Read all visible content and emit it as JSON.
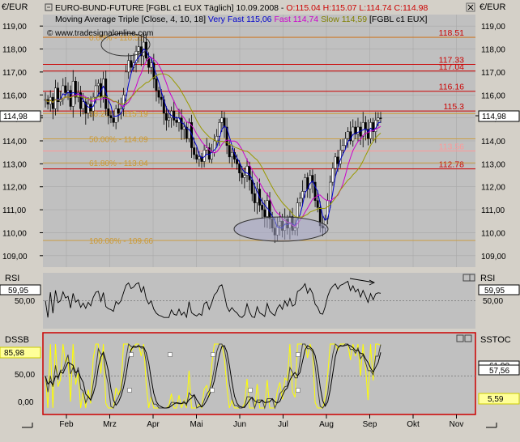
{
  "header": {
    "left_axis_unit": "€/EUR",
    "right_axis_unit": "€/EUR",
    "line1_prefix": "EURO-BUND-FUTURE [FGBL c1 EUX  Täglich] 10.09.2008 - ",
    "line1_ohlc": "O:115.04 H:115.07 L:114.74 C:114.98",
    "line2_prefix": "Moving Average Triple [Close, 4, 10, 18] ",
    "ma_very_fast": "Very Fast 115,06",
    "ma_fast": "Fast 114,74",
    "ma_slow": "Slow 114,59",
    "line2_suffix": " [FGBL c1 EUX]",
    "copyright": "© www.tradesignalonline.com",
    "current_price": "114,98"
  },
  "panels": {
    "rsi": {
      "label": "RSI",
      "value": "59,95",
      "axis_left": "50,00",
      "axis_right": "50,00",
      "axis_left_value": "59,95"
    },
    "dssb": {
      "label": "DSSB",
      "right_label": "SSTOC",
      "value_left": "85,98",
      "value_right_1": "61,90",
      "value_right_2": "57,56",
      "value_right_3": "5,59"
    }
  },
  "colors": {
    "background": "#c0c0c0",
    "grid": "#a8a8a8",
    "fib_line": "#cc9933",
    "red_line": "#cc0000",
    "ma_very_fast": "#0000cc",
    "ma_fast": "#cc00cc",
    "ma_slow": "#999900",
    "yellow": "#ffff00"
  },
  "chart_data": [
    {
      "type": "candlestick",
      "title": "EURO-BUND-FUTURE [FGBL c1 EUX  Täglich]",
      "ylim": [
        108.5,
        119.5
      ],
      "yticks": [
        "119,00",
        "118,00",
        "117,00",
        "116,00",
        "115,00",
        "114,00",
        "113,00",
        "112,00",
        "111,00",
        "110,00",
        "109,00"
      ],
      "ytick_values": [
        119,
        118,
        117,
        116,
        115,
        114,
        113,
        112,
        111,
        110,
        109
      ],
      "xticks": [
        "Feb",
        "Mrz",
        "Apr",
        "Mai",
        "Jun",
        "Jul",
        "Aug",
        "Sep",
        "Okt",
        "Nov"
      ],
      "horizontal_levels": [
        {
          "value": 118.51,
          "label": "118.51",
          "color": "red"
        },
        {
          "value": 117.33,
          "label": "117.33",
          "color": "red"
        },
        {
          "value": 117.04,
          "label": "117.04",
          "color": "red"
        },
        {
          "value": 116.16,
          "label": "116.16",
          "color": "red"
        },
        {
          "value": 115.3,
          "label": "115.3",
          "color": "red"
        },
        {
          "value": 113.56,
          "label": "113.56",
          "color": "pink"
        },
        {
          "value": 112.78,
          "label": "112.78",
          "color": "red"
        }
      ],
      "fib_levels": [
        {
          "value": 118.51,
          "label": "0.00% - 118.51"
        },
        {
          "value": 115.19,
          "label": "38.20% - 115.19"
        },
        {
          "value": 114.09,
          "label": "50.00% - 114.09"
        },
        {
          "value": 113.04,
          "label": "61.80% - 113.04"
        },
        {
          "value": 109.66,
          "label": "100.00% - 109.66"
        }
      ],
      "close_series": [
        115.8,
        115.6,
        115.9,
        115.4,
        116.3,
        115.7,
        115.8,
        116.4,
        116.1,
        116.2,
        115.5,
        116.6,
        115.9,
        116.1,
        115.4,
        115.7,
        115.2,
        115.6,
        115.3,
        115.9,
        116.4,
        116.5,
        115.9,
        116.7,
        115.4,
        115.1,
        115.0,
        114.8,
        115.4,
        115.2,
        115.4,
        116.0,
        117.0,
        117.5,
        117.2,
        117.4,
        117.9,
        118.1,
        117.7,
        118.3,
        117.6,
        117.2,
        117.4,
        116.7,
        116.2,
        115.9,
        115.8,
        115.2,
        114.9,
        115.0,
        115.3,
        114.9,
        114.8,
        115.0,
        114.5,
        114.6,
        114.1,
        114.8,
        113.7,
        113.4,
        113.2,
        113.3,
        113.1,
        113.6,
        113.7,
        113.2,
        113.5,
        114.0,
        114.2,
        114.8,
        115.0,
        114.6,
        113.8,
        113.3,
        113.5,
        113.2,
        113.0,
        112.6,
        112.4,
        112.5,
        112.9,
        112.3,
        111.7,
        111.3,
        111.9,
        111.2,
        111.0,
        110.7,
        111.4,
        110.6,
        110.2,
        109.9,
        110.3,
        110.5,
        110.1,
        110.6,
        110.2,
        110.7,
        110.1,
        110.2,
        111.3,
        111.5,
        111.8,
        112.4,
        111.9,
        112.5,
        112.2,
        111.4,
        111.1,
        110.3,
        110.2,
        110.6,
        111.4,
        112.2,
        112.8,
        113.3,
        113.0,
        113.6,
        113.8,
        114.1,
        114.4,
        114.0,
        114.6,
        114.3,
        114.6,
        114.2,
        114.8,
        114.5,
        114.1,
        114.8,
        114.4,
        114.9,
        115.0,
        114.98
      ],
      "rsi": {
        "value": 59.95,
        "reference_line": 50.0
      },
      "dssb": {
        "value": 85.98,
        "ticks": [
          "50,00",
          "0,00"
        ]
      },
      "sstoc": {
        "values": [
          61.9,
          57.56,
          5.59
        ]
      }
    }
  ]
}
